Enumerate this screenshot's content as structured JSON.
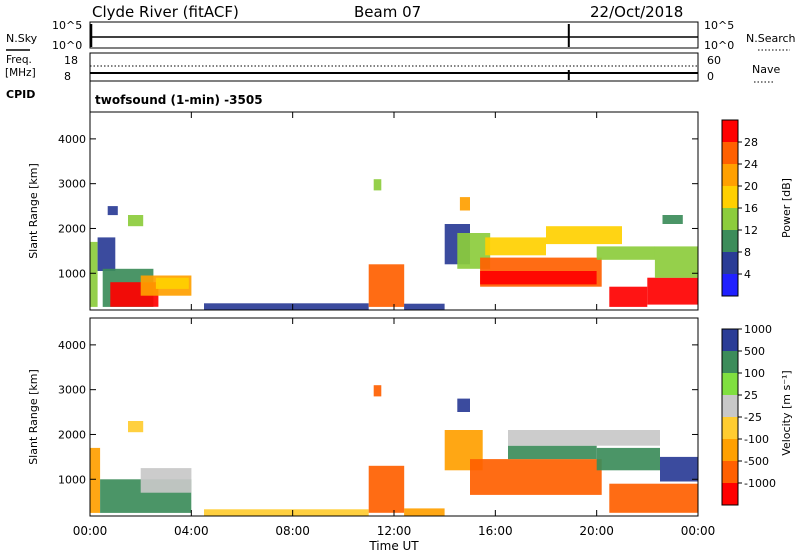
{
  "header": {
    "station": "Clyde River (fitACF)",
    "beam": "Beam 07",
    "date": "22/Oct/2018"
  },
  "status_panel": {
    "nsky_label": "N.Sky",
    "nsky_ticks": [
      "10^5",
      "10^0"
    ],
    "nsearch_label": "N.Search",
    "nsearch_ticks": [
      "10^5",
      "10^0"
    ],
    "freq_label": "Freq.",
    "freq_unit": "[MHz]",
    "freq_ticks": [
      "18",
      "8"
    ],
    "nave_label": "Nave",
    "nave_ticks": [
      "60",
      "0"
    ],
    "cpid_label": "CPID",
    "cpid_text": "twofsound (1-min) -3505"
  },
  "colors": {
    "power_scale": [
      "#2020ff",
      "#2a3c96",
      "#3c8c5a",
      "#8ccc3c",
      "#ffd000",
      "#ffa000",
      "#ff6000",
      "#ff0000"
    ],
    "velocity_scale": [
      "#ff0000",
      "#ff6000",
      "#ffa000",
      "#ffcc30",
      "#c8c8c8",
      "#80e040",
      "#3c8c5a",
      "#2a3c96"
    ],
    "gray": "#c0c0c0"
  },
  "chart_data": [
    {
      "type": "heatmap",
      "panel": "power",
      "xlabel": "",
      "ylabel": "Slant Range [km]",
      "ylim": [
        180,
        4600
      ],
      "ytick_labels": [
        "1000",
        "2000",
        "3000",
        "4000"
      ],
      "colorbar_label": "Power [dB]",
      "colorbar_ticks": [
        "4",
        "8",
        "12",
        "16",
        "20",
        "24",
        "28"
      ],
      "regions": [
        {
          "t0": 0.0,
          "t1": 0.3,
          "r0": 250,
          "r1": 1700,
          "level": 3
        },
        {
          "t0": 0.3,
          "t1": 1.0,
          "r0": 1050,
          "r1": 1800,
          "level": 1
        },
        {
          "t0": 0.5,
          "t1": 2.5,
          "r0": 250,
          "r1": 1100,
          "level": 2
        },
        {
          "t0": 0.8,
          "t1": 2.7,
          "r0": 250,
          "r1": 800,
          "level": 7
        },
        {
          "t0": 2.0,
          "t1": 4.0,
          "r0": 500,
          "r1": 950,
          "level": 5
        },
        {
          "t0": 2.6,
          "t1": 3.9,
          "r0": 650,
          "r1": 900,
          "level": 4
        },
        {
          "t0": 1.5,
          "t1": 2.1,
          "r0": 2050,
          "r1": 2300,
          "level": 3
        },
        {
          "t0": 0.7,
          "t1": 1.1,
          "r0": 2300,
          "r1": 2500,
          "level": 1
        },
        {
          "t0": 4.5,
          "t1": 11.0,
          "r0": 190,
          "r1": 330,
          "level": 1
        },
        {
          "t0": 11.0,
          "t1": 12.4,
          "r0": 250,
          "r1": 1200,
          "level": 6
        },
        {
          "t0": 11.2,
          "t1": 11.5,
          "r0": 2850,
          "r1": 3100,
          "level": 3
        },
        {
          "t0": 12.4,
          "t1": 14.0,
          "r0": 190,
          "r1": 320,
          "level": 1
        },
        {
          "t0": 14.0,
          "t1": 15.0,
          "r0": 1200,
          "r1": 2100,
          "level": 1
        },
        {
          "t0": 14.5,
          "t1": 15.8,
          "r0": 1100,
          "r1": 1900,
          "level": 3
        },
        {
          "t0": 14.6,
          "t1": 15.0,
          "r0": 2400,
          "r1": 2700,
          "level": 5
        },
        {
          "t0": 15.4,
          "t1": 20.2,
          "r0": 700,
          "r1": 1350,
          "level": 6
        },
        {
          "t0": 15.4,
          "t1": 20.0,
          "r0": 750,
          "r1": 1050,
          "level": 7
        },
        {
          "t0": 15.6,
          "t1": 18.0,
          "r0": 1400,
          "r1": 1800,
          "level": 4
        },
        {
          "t0": 18.0,
          "t1": 21.0,
          "r0": 1650,
          "r1": 2050,
          "level": 4
        },
        {
          "t0": 20.0,
          "t1": 22.3,
          "r0": 1300,
          "r1": 1600,
          "level": 3
        },
        {
          "t0": 20.5,
          "t1": 22.0,
          "r0": 250,
          "r1": 700,
          "level": 7
        },
        {
          "t0": 22.0,
          "t1": 24.0,
          "r0": 300,
          "r1": 900,
          "level": 7
        },
        {
          "t0": 22.3,
          "t1": 24.0,
          "r0": 900,
          "r1": 1600,
          "level": 3
        },
        {
          "t0": 22.6,
          "t1": 23.4,
          "r0": 2100,
          "r1": 2300,
          "level": 2
        }
      ]
    },
    {
      "type": "heatmap",
      "panel": "velocity",
      "xlabel": "Time UT",
      "ylabel": "Slant Range [km]",
      "ylim": [
        180,
        4600
      ],
      "ytick_labels": [
        "1000",
        "2000",
        "3000",
        "4000"
      ],
      "xtick_labels": [
        "00:00",
        "04:00",
        "08:00",
        "12:00",
        "16:00",
        "20:00",
        "00:00"
      ],
      "colorbar_label": "Velocity [m s⁻¹]",
      "colorbar_ticks": [
        "-1000",
        "-500",
        "-100",
        "-25",
        "25",
        "100",
        "500",
        "1000"
      ],
      "regions": [
        {
          "t0": 0.0,
          "t1": 0.4,
          "r0": 250,
          "r1": 1700,
          "level": 2
        },
        {
          "t0": 0.4,
          "t1": 4.0,
          "r0": 250,
          "r1": 1000,
          "level": 6
        },
        {
          "t0": 2.0,
          "t1": 4.0,
          "r0": 700,
          "r1": 1250,
          "level": 4
        },
        {
          "t0": 1.5,
          "t1": 2.1,
          "r0": 2050,
          "r1": 2300,
          "level": 3
        },
        {
          "t0": 4.5,
          "t1": 11.0,
          "r0": 190,
          "r1": 330,
          "level": 3
        },
        {
          "t0": 11.0,
          "t1": 12.4,
          "r0": 250,
          "r1": 1300,
          "level": 1
        },
        {
          "t0": 11.2,
          "t1": 11.5,
          "r0": 2850,
          "r1": 3100,
          "level": 1
        },
        {
          "t0": 12.4,
          "t1": 14.0,
          "r0": 190,
          "r1": 350,
          "level": 2
        },
        {
          "t0": 14.0,
          "t1": 15.5,
          "r0": 1200,
          "r1": 2100,
          "level": 2
        },
        {
          "t0": 14.5,
          "t1": 15.0,
          "r0": 2500,
          "r1": 2800,
          "level": 7
        },
        {
          "t0": 15.0,
          "t1": 20.2,
          "r0": 650,
          "r1": 1450,
          "level": 1
        },
        {
          "t0": 16.5,
          "t1": 20.0,
          "r0": 1450,
          "r1": 1750,
          "level": 6
        },
        {
          "t0": 16.5,
          "t1": 22.5,
          "r0": 1750,
          "r1": 2100,
          "level": 4
        },
        {
          "t0": 20.0,
          "t1": 22.5,
          "r0": 1200,
          "r1": 1700,
          "level": 6
        },
        {
          "t0": 20.5,
          "t1": 24.0,
          "r0": 250,
          "r1": 900,
          "level": 1
        },
        {
          "t0": 22.5,
          "t1": 24.0,
          "r0": 950,
          "r1": 1500,
          "level": 7
        }
      ]
    }
  ]
}
